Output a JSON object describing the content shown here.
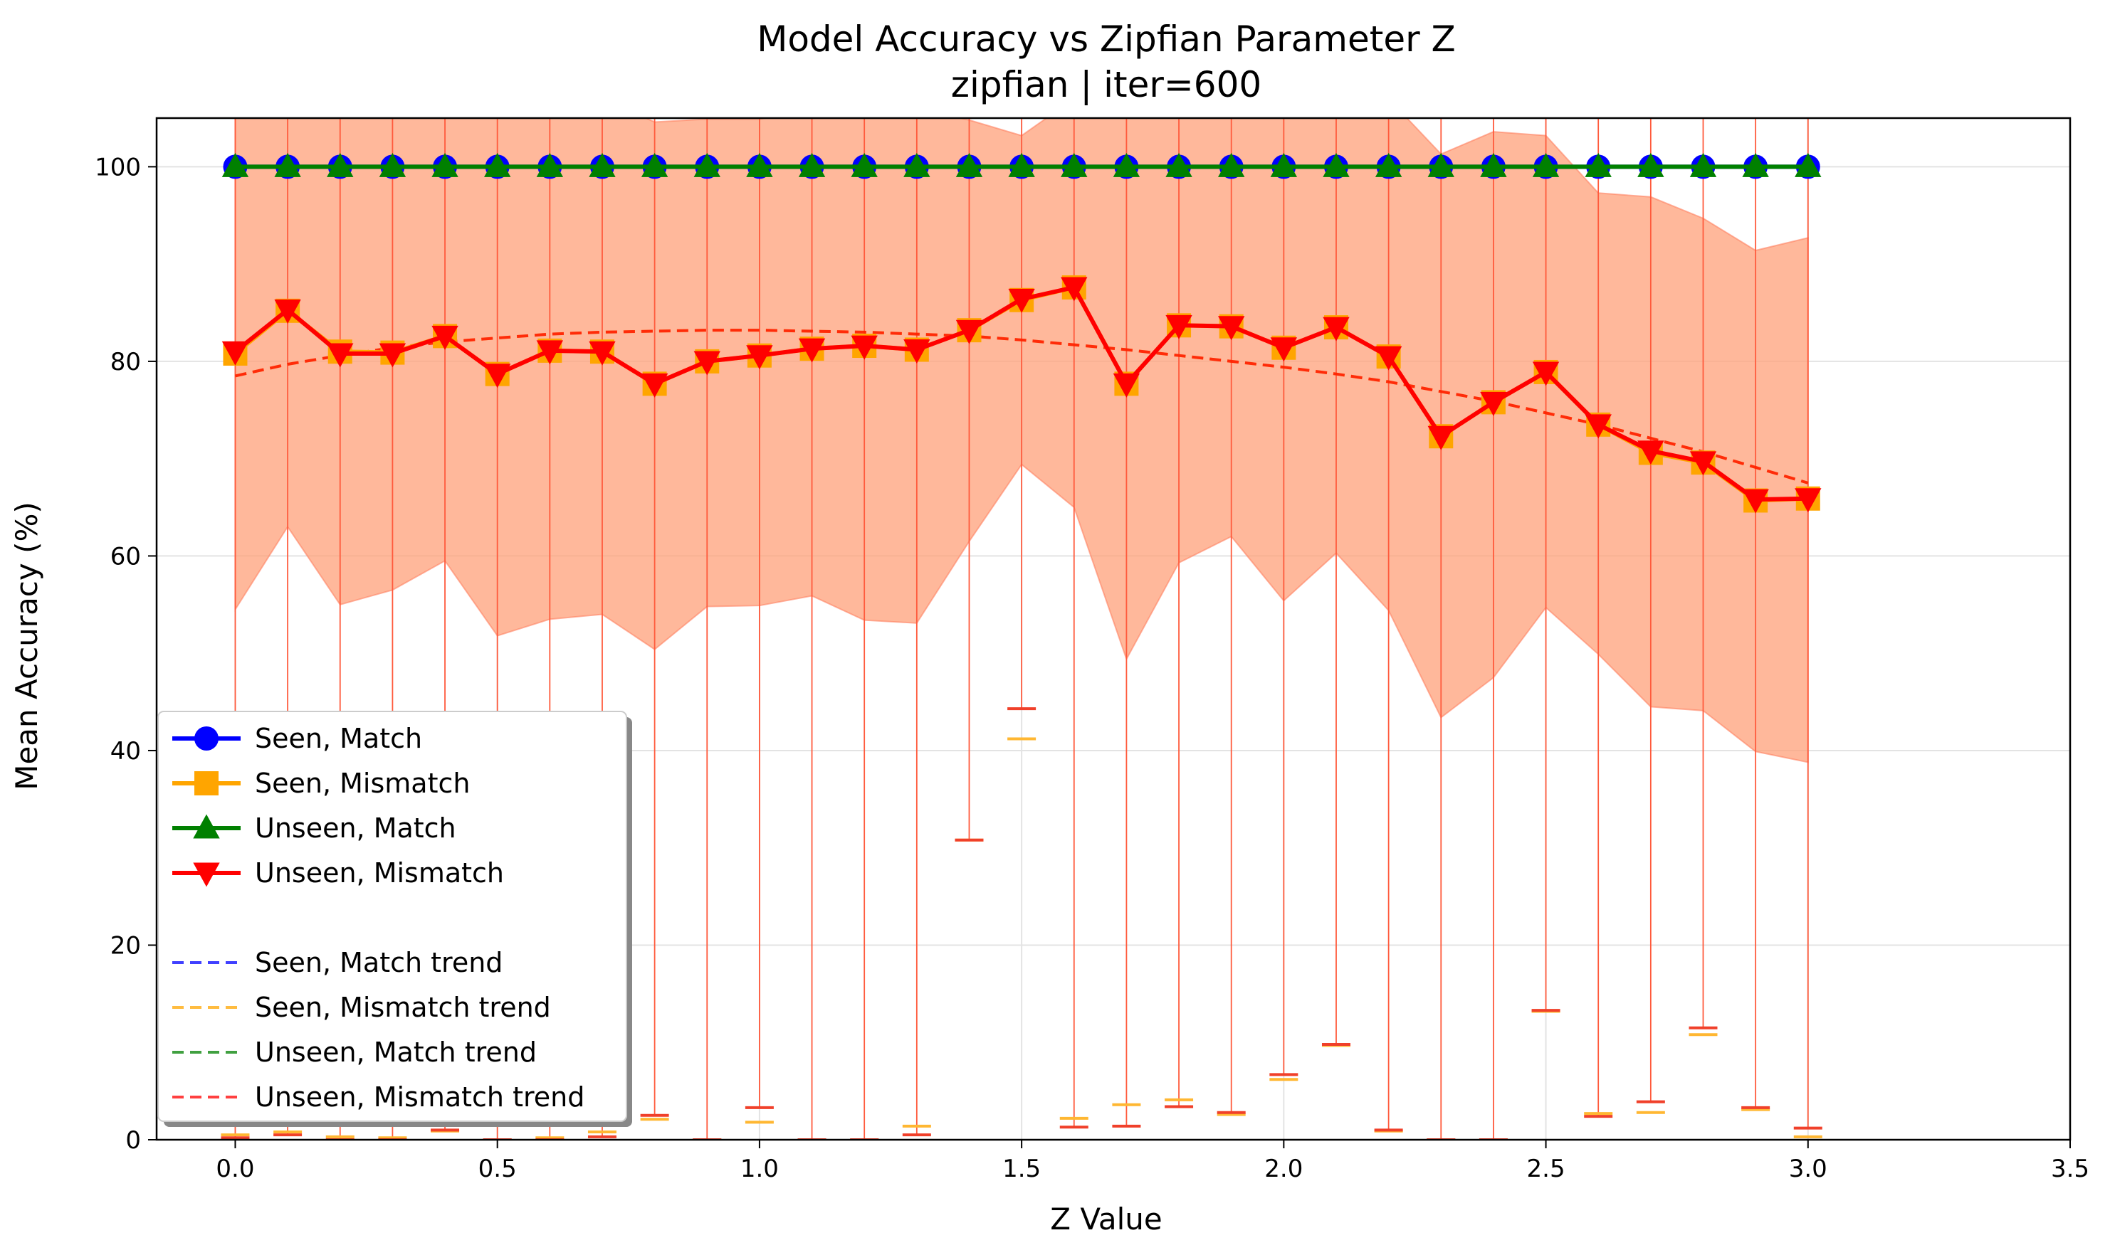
{
  "chart_data": {
    "type": "line",
    "title": "Model Accuracy vs Zipfian Parameter Z",
    "subtitle": "zipfian | iter=600",
    "xlabel": "Z Value",
    "ylabel": "Mean Accuracy (%)",
    "xlim": [
      -0.15,
      3.5
    ],
    "ylim": [
      0,
      105
    ],
    "xticks": [
      "0.0",
      "0.5",
      "1.0",
      "1.5",
      "2.0",
      "2.5",
      "3.0",
      "3.5"
    ],
    "yticks": [
      "0",
      "20",
      "40",
      "60",
      "80",
      "100"
    ],
    "grid": true,
    "legend_position": "lower-left",
    "x": [
      0.0,
      0.1,
      0.2,
      0.3,
      0.4,
      0.5,
      0.6,
      0.7,
      0.8,
      0.9,
      1.0,
      1.1,
      1.2,
      1.3,
      1.4,
      1.5,
      1.6,
      1.7,
      1.8,
      1.9,
      2.0,
      2.1,
      2.2,
      2.3,
      2.4,
      2.5,
      2.6,
      2.7,
      2.8,
      2.9,
      3.0
    ],
    "series": [
      {
        "name": "Seen, Match",
        "color": "#0000ff",
        "marker": "circle",
        "values": [
          100,
          100,
          100,
          100,
          100,
          100,
          100,
          100,
          100,
          100,
          100,
          100,
          100,
          100,
          100,
          100,
          100,
          100,
          100,
          100,
          100,
          100,
          100,
          100,
          100,
          100,
          100,
          100,
          100,
          100,
          100
        ]
      },
      {
        "name": "Seen, Mismatch",
        "color": "#ffa500",
        "marker": "square",
        "values": [
          80.8,
          85.2,
          81.0,
          80.9,
          82.6,
          78.7,
          81.1,
          81.0,
          77.7,
          80.0,
          80.6,
          81.3,
          81.6,
          81.2,
          83.2,
          86.3,
          87.6,
          77.7,
          83.7,
          83.6,
          81.4,
          83.5,
          80.5,
          72.3,
          75.8,
          78.9,
          73.5,
          70.6,
          69.6,
          65.7,
          65.9
        ],
        "err_low": [
          0.5,
          0.8,
          0.3,
          0.2,
          0.9,
          0.0,
          0.2,
          0.8,
          2.1,
          0.0,
          1.8,
          0.0,
          0.0,
          1.4,
          30.8,
          41.2,
          2.2,
          3.6,
          4.1,
          2.6,
          6.2,
          9.7,
          0.9,
          0.0,
          0.0,
          13.2,
          2.7,
          2.8,
          10.8,
          3.1,
          0.3
        ]
      },
      {
        "name": "Unseen, Match",
        "color": "#008000",
        "marker": "triangle-up",
        "values": [
          100,
          100,
          100,
          100,
          100,
          100,
          100,
          100,
          100,
          100,
          100,
          100,
          100,
          100,
          100,
          100,
          100,
          100,
          100,
          100,
          100,
          100,
          100,
          100,
          100,
          100,
          100,
          100,
          100,
          100,
          100
        ]
      },
      {
        "name": "Unseen, Mismatch",
        "color": "#ff0000",
        "marker": "triangle-down",
        "values": [
          81.0,
          85.3,
          80.8,
          80.8,
          82.6,
          78.7,
          81.1,
          81.0,
          77.7,
          80.0,
          80.6,
          81.3,
          81.6,
          81.2,
          83.2,
          86.4,
          87.6,
          77.7,
          83.7,
          83.6,
          81.4,
          83.5,
          80.5,
          72.3,
          75.8,
          78.9,
          73.5,
          70.8,
          69.7,
          65.8,
          65.9
        ],
        "band_low": [
          54.5,
          63.0,
          55.0,
          56.5,
          59.5,
          51.8,
          53.5,
          54.0,
          50.4,
          54.8,
          54.9,
          55.9,
          53.4,
          53.1,
          61.5,
          69.4,
          65.0,
          49.4,
          59.3,
          62.0,
          55.4,
          60.3,
          54.4,
          43.4,
          47.5,
          54.7,
          49.9,
          44.5,
          44.1,
          39.9,
          38.8
        ],
        "band_high": [
          107.0,
          107.0,
          107.0,
          107.0,
          107.0,
          107.0,
          107.0,
          107.0,
          104.6,
          104.9,
          104.9,
          105.7,
          106.5,
          106.0,
          104.8,
          103.2,
          107.0,
          107.0,
          107.0,
          107.0,
          107.0,
          107.0,
          107.0,
          101.3,
          103.6,
          103.2,
          97.3,
          96.9,
          94.7,
          91.4,
          92.7
        ],
        "err_low": [
          0.2,
          0.5,
          0.0,
          0.0,
          1.0,
          0.0,
          0.0,
          0.3,
          2.5,
          0.0,
          3.3,
          0.0,
          0.0,
          0.5,
          30.8,
          44.3,
          1.3,
          1.4,
          3.4,
          2.8,
          6.7,
          9.8,
          1.0,
          0.0,
          0.0,
          13.3,
          2.4,
          3.9,
          11.5,
          3.3,
          1.2
        ]
      }
    ],
    "trends": [
      {
        "name": "Seen, Match trend",
        "color": "#0000ff",
        "values": [
          100,
          100,
          100,
          100,
          100,
          100,
          100,
          100,
          100,
          100,
          100,
          100,
          100,
          100,
          100,
          100,
          100,
          100,
          100,
          100,
          100,
          100,
          100,
          100,
          100,
          100,
          100,
          100,
          100,
          100,
          100
        ]
      },
      {
        "name": "Seen, Mismatch trend",
        "color": "#ffa500",
        "values": [
          78.5,
          79.7,
          80.6,
          81.4,
          82.0,
          82.4,
          82.8,
          83.0,
          83.1,
          83.2,
          83.2,
          83.1,
          83.0,
          82.8,
          82.6,
          82.2,
          81.7,
          81.2,
          80.6,
          80.0,
          79.4,
          78.7,
          77.9,
          76.9,
          75.9,
          74.7,
          73.5,
          72.1,
          70.7,
          69.1,
          67.5
        ]
      },
      {
        "name": "Unseen, Match trend",
        "color": "#008000",
        "values": [
          100,
          100,
          100,
          100,
          100,
          100,
          100,
          100,
          100,
          100,
          100,
          100,
          100,
          100,
          100,
          100,
          100,
          100,
          100,
          100,
          100,
          100,
          100,
          100,
          100,
          100,
          100,
          100,
          100,
          100,
          100
        ]
      },
      {
        "name": "Unseen, Mismatch trend",
        "color": "#ff0000",
        "values": [
          78.5,
          79.7,
          80.6,
          81.4,
          82.0,
          82.4,
          82.8,
          83.0,
          83.1,
          83.2,
          83.2,
          83.1,
          83.0,
          82.8,
          82.6,
          82.2,
          81.7,
          81.2,
          80.6,
          80.0,
          79.4,
          78.7,
          77.9,
          76.9,
          75.9,
          74.7,
          73.5,
          72.1,
          70.7,
          69.1,
          67.5
        ]
      }
    ]
  }
}
